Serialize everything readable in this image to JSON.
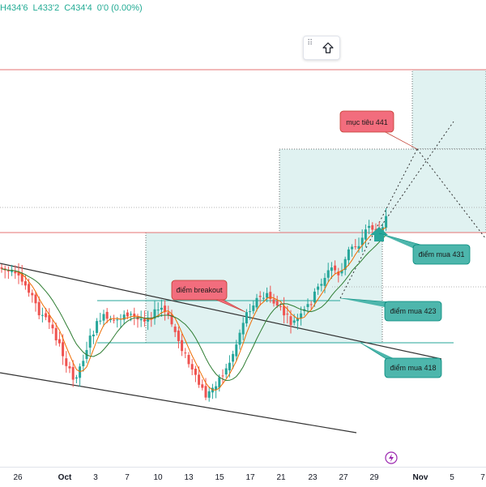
{
  "ohlc": {
    "high": "H434'6",
    "low": "L433'2",
    "close": "C434'4",
    "change": "0'0 (0.00%)"
  },
  "xaxis": {
    "ticks": [
      "26",
      "Oct",
      "3",
      "7",
      "10",
      "13",
      "15",
      "17",
      "21",
      "23",
      "27",
      "29",
      "Nov",
      "5",
      "7"
    ]
  },
  "annotations": {
    "target": "mục tiêu 441",
    "breakout": "điểm breakout",
    "buy431": "điểm mua 431",
    "buy423": "điểm mua 423",
    "buy418": "điểm mua 418"
  },
  "colors": {
    "up": "#26a69a",
    "down": "#ef5350",
    "ma_fast": "#ef6c00",
    "ma_slow": "#2e7d32",
    "zone_fill": "#e0f2f1",
    "label_red": "#f26d7d",
    "label_green": "#4db6ac"
  },
  "icons": [
    "drag-handle-icon",
    "arrow-up-icon",
    "lightning-icon",
    "buy-arrow-icon"
  ]
}
